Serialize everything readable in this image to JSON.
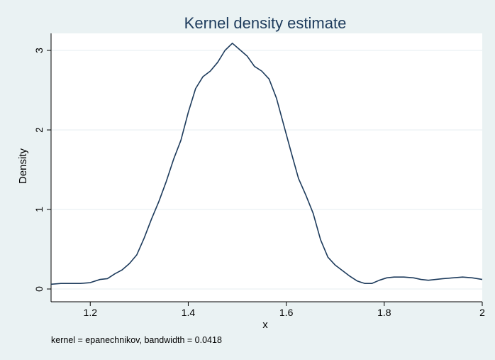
{
  "chart_data": {
    "type": "line",
    "title": "Kernel density estimate",
    "xlabel": "x",
    "ylabel": "Density",
    "note": "kernel = epanechnikov, bandwidth = 0.0418",
    "xlim": [
      1.12,
      2.0
    ],
    "ylim": [
      0,
      3.1
    ],
    "xticks": [
      1.2,
      1.4,
      1.6,
      1.8,
      2.0
    ],
    "xtick_labels": [
      "1.2",
      "1.4",
      "1.6",
      "1.8",
      "2"
    ],
    "yticks": [
      0,
      1,
      2,
      3
    ],
    "ytick_labels": [
      "0",
      "1",
      "2",
      "3"
    ],
    "grid": true,
    "legend": "none",
    "colors": {
      "background": "#eaf2f3",
      "plot_area": "#ffffff",
      "line": "#1d3b5c",
      "grid": "#e6eef0",
      "title": "#1d3b5c"
    },
    "series": [
      {
        "x": [
          1.12,
          1.14,
          1.16,
          1.18,
          1.2,
          1.22,
          1.235,
          1.25,
          1.265,
          1.28,
          1.295,
          1.31,
          1.325,
          1.34,
          1.355,
          1.37,
          1.385,
          1.4,
          1.415,
          1.43,
          1.445,
          1.46,
          1.475,
          1.49,
          1.505,
          1.52,
          1.535,
          1.55,
          1.565,
          1.58,
          1.595,
          1.61,
          1.625,
          1.64,
          1.655,
          1.67,
          1.685,
          1.7,
          1.715,
          1.73,
          1.745,
          1.76,
          1.775,
          1.79,
          1.805,
          1.82,
          1.84,
          1.86,
          1.875,
          1.89,
          1.905,
          1.92,
          1.94,
          1.96,
          1.98,
          2.0
        ],
        "y": [
          0.06,
          0.07,
          0.07,
          0.07,
          0.08,
          0.12,
          0.13,
          0.19,
          0.24,
          0.32,
          0.43,
          0.64,
          0.88,
          1.1,
          1.35,
          1.63,
          1.87,
          2.22,
          2.52,
          2.67,
          2.74,
          2.85,
          3.0,
          3.09,
          3.01,
          2.93,
          2.8,
          2.74,
          2.64,
          2.4,
          2.06,
          1.72,
          1.39,
          1.18,
          0.95,
          0.62,
          0.4,
          0.3,
          0.23,
          0.16,
          0.1,
          0.07,
          0.07,
          0.11,
          0.14,
          0.15,
          0.15,
          0.14,
          0.12,
          0.11,
          0.12,
          0.13,
          0.14,
          0.15,
          0.14,
          0.12
        ]
      }
    ]
  }
}
